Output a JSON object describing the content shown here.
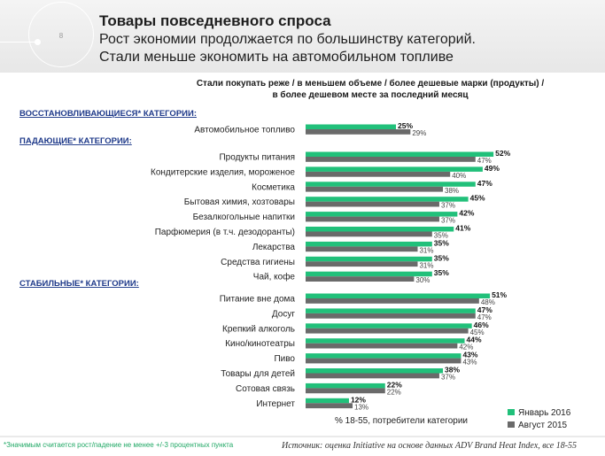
{
  "header": {
    "slide_number": "8",
    "title": "Товары повседневного спроса",
    "subtitle_line1": "Рост экономии продолжается по большинству категорий.",
    "subtitle_line2": "Стали меньше экономить на автомобильном топливе"
  },
  "footnote": "*Значимым считается рост/падение не менее +/-3 процентных пункта",
  "source": "Источник: оценка Initiative на основе данных ADV Brand Heat Index, все 18-55",
  "colors": {
    "jan2016": "#21c07a",
    "aug2015": "#6a6a6a"
  },
  "chart_data": {
    "type": "bar",
    "orientation": "horizontal",
    "title_line1": "Стали покупать реже / в меньшем объеме / более дешевые марки (продукты) /",
    "title_line2": "в более дешевом месте за последний месяц",
    "xlabel": "% 18-55, потребители категории",
    "unit": "%",
    "legend_position": "bottom-right",
    "series_names": [
      "Январь 2016",
      "Август 2015"
    ],
    "groups": [
      {
        "label": "ВОССТАНОВЛИВАЮЩИЕСЯ* КАТЕГОРИИ:",
        "items": [
          {
            "category": "Автомобильное топливо",
            "jan2016": 25,
            "aug2015": 29
          }
        ]
      },
      {
        "label": "ПАДАЮЩИЕ* КАТЕГОРИИ:",
        "items": [
          {
            "category": "Продукты питания",
            "jan2016": 52,
            "aug2015": 47
          },
          {
            "category": "Кондитерские изделия, мороженое",
            "jan2016": 49,
            "aug2015": 40
          },
          {
            "category": "Косметика",
            "jan2016": 47,
            "aug2015": 38
          },
          {
            "category": "Бытовая химия, хозтовары",
            "jan2016": 45,
            "aug2015": 37
          },
          {
            "category": "Безалкогольные напитки",
            "jan2016": 42,
            "aug2015": 37
          },
          {
            "category": "Парфюмерия (в т.ч. дезодоранты)",
            "jan2016": 41,
            "aug2015": 35
          },
          {
            "category": "Лекарства",
            "jan2016": 35,
            "aug2015": 31
          },
          {
            "category": "Средства гигиены",
            "jan2016": 35,
            "aug2015": 31
          },
          {
            "category": "Чай, кофе",
            "jan2016": 35,
            "aug2015": 30
          }
        ]
      },
      {
        "label": "СТАБИЛЬНЫЕ* КАТЕГОРИИ:",
        "items": [
          {
            "category": "Питание вне дома",
            "jan2016": 51,
            "aug2015": 48
          },
          {
            "category": "Досуг",
            "jan2016": 47,
            "aug2015": 47
          },
          {
            "category": "Крепкий алкоголь",
            "jan2016": 46,
            "aug2015": 45
          },
          {
            "category": "Кино/кинотеатры",
            "jan2016": 44,
            "aug2015": 42
          },
          {
            "category": "Пиво",
            "jan2016": 43,
            "aug2015": 43
          },
          {
            "category": "Товары для детей",
            "jan2016": 38,
            "aug2015": 37
          },
          {
            "category": "Сотовая связь",
            "jan2016": 22,
            "aug2015": 22
          },
          {
            "category": "Интернет",
            "jan2016": 12,
            "aug2015": 13
          }
        ]
      }
    ]
  }
}
